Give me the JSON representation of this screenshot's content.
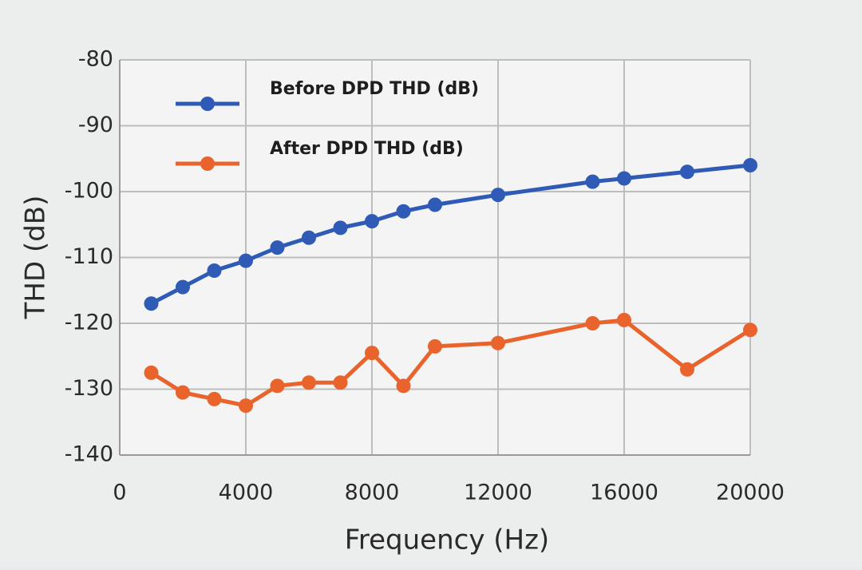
{
  "chart_data": {
    "type": "line",
    "x_label": "Frequency (Hz)",
    "y_label": "THD (dB)",
    "x": [
      1000,
      2000,
      3000,
      4000,
      5000,
      6000,
      7000,
      8000,
      9000,
      10000,
      12000,
      15000,
      16000,
      18000,
      20000
    ],
    "series": [
      {
        "name": "Before DPD THD (dB)",
        "color": "#2f5bb7",
        "values": [
          -117,
          -114.5,
          -112,
          -110.5,
          -108.5,
          -107,
          -105.5,
          -104.5,
          -103,
          -102,
          -100.5,
          -98.5,
          -98,
          -97,
          -96
        ]
      },
      {
        "name": "After DPD THD (dB)",
        "color": "#e8642c",
        "values": [
          -127.5,
          -130.5,
          -131.5,
          -132.5,
          -129.5,
          -129,
          -129,
          -124.5,
          -129.5,
          -123.5,
          -123,
          -120,
          -119.5,
          -127,
          -121
        ]
      }
    ],
    "xlim": [
      0,
      20000
    ],
    "xticks": [
      0,
      4000,
      8000,
      12000,
      16000,
      20000
    ],
    "ylim": [
      -140,
      -80
    ],
    "yticks": [
      -140,
      -130,
      -120,
      -110,
      -100,
      -90,
      -80
    ],
    "grid": true,
    "legend": "upper left"
  }
}
